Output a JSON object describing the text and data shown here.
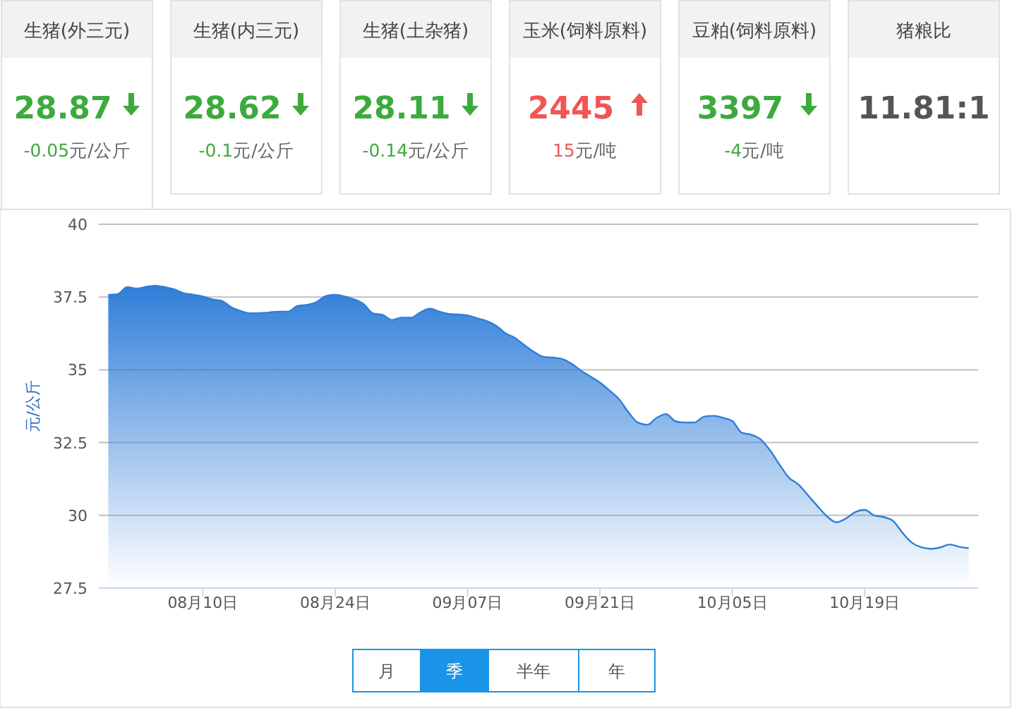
{
  "chart_data": [
    {
      "type": "other",
      "categories": [
        "生猪(外三元)",
        "生猪(内三元)",
        "生猪(土杂猪)",
        "玉米(饲料原料)",
        "豆粕(饲料原料)",
        "猪粮比"
      ],
      "value_labels": [
        "28.87",
        "28.62",
        "28.11",
        "2445",
        "3397",
        "11.81:1"
      ],
      "annotations": [
        "-0.05元/公斤",
        "-0.1元/公斤",
        "-0.14元/公斤",
        "15元/吨",
        "-4元/吨",
        null
      ]
    },
    {
      "type": "area",
      "ylabel": "元/公斤",
      "grid": "y",
      "ylim": [
        27.5,
        40
      ],
      "yticks": [
        27.5,
        30,
        32.5,
        35,
        37.5,
        40
      ],
      "xlim": [
        "--07-30",
        "--10-31"
      ],
      "xticks": [
        {
          "value": "--08-10",
          "label": "08月10日"
        },
        {
          "value": "--08-24",
          "label": "08月24日"
        },
        {
          "value": "--09-07",
          "label": "09月07日"
        },
        {
          "value": "--09-21",
          "label": "09月21日"
        },
        {
          "value": "--10-05",
          "label": "10月05日"
        },
        {
          "value": "--10-19",
          "label": "10月19日"
        }
      ],
      "annotations": [
        "月",
        "季",
        "半年",
        "年"
      ],
      "x": [
        "--07-31",
        "--08-01",
        "--08-02",
        "--08-03",
        "--08-04",
        "--08-05",
        "--08-06",
        "--08-07",
        "--08-08",
        "--08-09",
        "--08-10",
        "--08-11",
        "--08-12",
        "--08-13",
        "--08-14",
        "--08-15",
        "--08-16",
        "--08-17",
        "--08-18",
        "--08-19",
        "--08-20",
        "--08-21",
        "--08-22",
        "--08-23",
        "--08-24",
        "--08-25",
        "--08-26",
        "--08-27",
        "--08-28",
        "--08-29",
        "--08-30",
        "--08-31",
        "--09-01",
        "--09-02",
        "--09-03",
        "--09-04",
        "--09-05",
        "--09-06",
        "--09-07",
        "--09-08",
        "--09-09",
        "--09-10",
        "--09-11",
        "--09-12",
        "--09-13",
        "--09-14",
        "--09-15",
        "--09-16",
        "--09-17",
        "--09-18",
        "--09-19",
        "--09-20",
        "--09-21",
        "--09-22",
        "--09-23",
        "--09-24",
        "--09-25",
        "--09-26",
        "--09-27",
        "--09-28",
        "--09-29",
        "--09-30",
        "--10-01",
        "--10-02",
        "--10-03",
        "--10-04",
        "--10-05",
        "--10-06",
        "--10-07",
        "--10-08",
        "--10-09",
        "--10-10",
        "--10-11",
        "--10-12",
        "--10-13",
        "--10-14",
        "--10-15",
        "--10-16",
        "--10-17",
        "--10-18",
        "--10-19",
        "--10-20",
        "--10-21",
        "--10-22",
        "--10-23",
        "--10-24",
        "--10-25",
        "--10-26",
        "--10-27",
        "--10-28",
        "--10-29",
        "--10-30"
      ],
      "series": [
        {
          "color": "#2f7ed8",
          "values": [
            37.58,
            37.6,
            37.84,
            37.79,
            37.85,
            37.89,
            37.84,
            37.76,
            37.63,
            37.58,
            37.52,
            37.42,
            37.37,
            37.15,
            37.02,
            36.94,
            36.95,
            36.97,
            37.0,
            37.0,
            37.19,
            37.23,
            37.32,
            37.53,
            37.58,
            37.52,
            37.42,
            37.26,
            36.94,
            36.89,
            36.71,
            36.79,
            36.79,
            36.97,
            37.1,
            37.0,
            36.92,
            36.9,
            36.87,
            36.77,
            36.68,
            36.52,
            36.26,
            36.1,
            35.85,
            35.62,
            35.45,
            35.42,
            35.37,
            35.21,
            34.97,
            34.77,
            34.56,
            34.29,
            34.0,
            33.55,
            33.19,
            33.11,
            33.35,
            33.48,
            33.23,
            33.19,
            33.19,
            33.39,
            33.42,
            33.35,
            33.24,
            32.84,
            32.77,
            32.61,
            32.23,
            31.74,
            31.29,
            31.06,
            30.69,
            30.32,
            29.97,
            29.76,
            29.89,
            30.11,
            30.19,
            30.0,
            29.94,
            29.81,
            29.4,
            29.06,
            28.9,
            28.85,
            28.9,
            29.0,
            28.92,
            28.87
          ]
        }
      ]
    }
  ]
}
